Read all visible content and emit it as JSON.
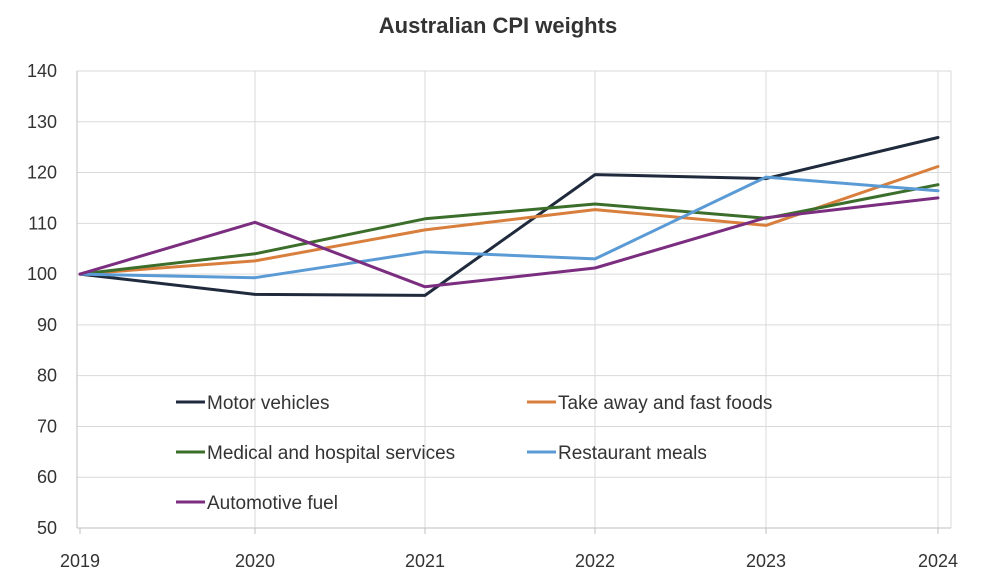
{
  "chart_data": {
    "type": "line",
    "title": "Australian CPI weights",
    "xlabel": "",
    "ylabel": "",
    "categories": [
      "2019",
      "2020",
      "2021",
      "2022",
      "2023",
      "2024"
    ],
    "ylim": [
      50,
      140
    ],
    "yticks": [
      50,
      60,
      70,
      80,
      90,
      100,
      110,
      120,
      130,
      140
    ],
    "grid": true,
    "legend_position": "bottom-center-inside",
    "series": [
      {
        "name": "Motor vehicles",
        "color": "#1f2a3c",
        "values": [
          100,
          96,
          95.8,
          119.6,
          118.8,
          126.9
        ]
      },
      {
        "name": "Take away and fast foods",
        "color": "#d97f3d",
        "values": [
          100,
          102.6,
          108.7,
          112.7,
          109.6,
          121.2
        ]
      },
      {
        "name": "Medical and hospital services",
        "color": "#3b6e2a",
        "values": [
          100,
          104,
          110.9,
          113.8,
          111,
          117.6
        ]
      },
      {
        "name": "Restaurant meals",
        "color": "#5b9bd5",
        "values": [
          100,
          99.3,
          104.4,
          103,
          119.1,
          116.4
        ]
      },
      {
        "name": "Automotive fuel",
        "color": "#7b2d7f",
        "values": [
          100,
          110.2,
          97.5,
          101.2,
          111.1,
          115
        ]
      }
    ]
  }
}
